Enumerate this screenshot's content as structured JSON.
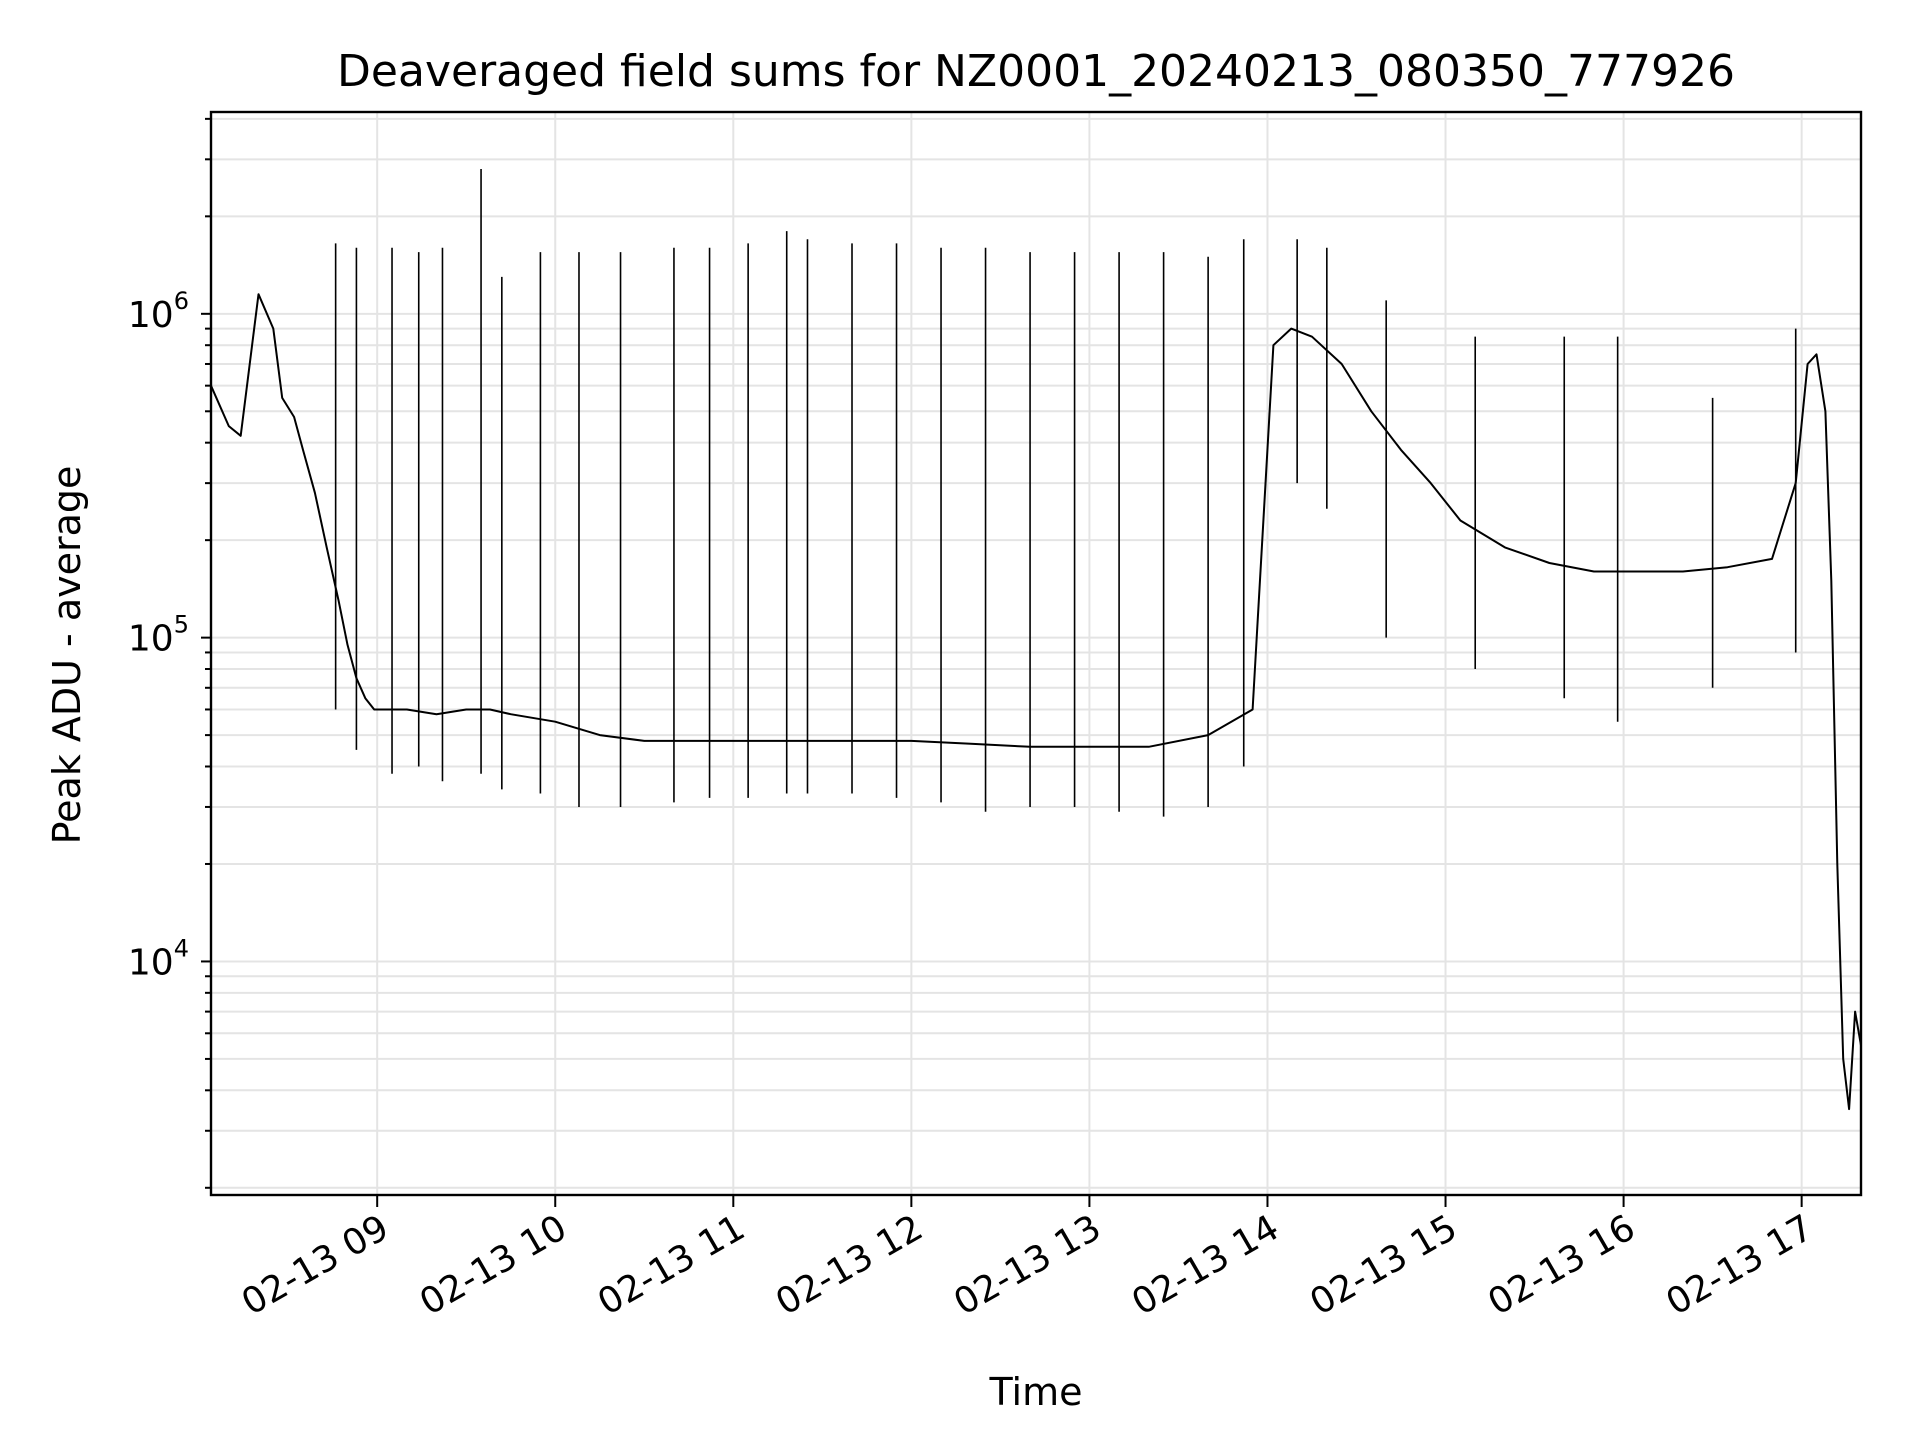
{
  "chart_data": {
    "type": "line",
    "title": "Deaveraged field sums for NZ0001_20240213_080350_777926",
    "xlabel": "Time",
    "ylabel": "Peak ADU - average",
    "x_scale": "time",
    "y_scale": "log",
    "xlim": [
      "2024-02-13 08:04",
      "2024-02-13 17:20"
    ],
    "ylim": [
      1900,
      4200000
    ],
    "grid": true,
    "x_ticks": [
      {
        "t": "2024-02-13 09:00",
        "label": "02-13 09"
      },
      {
        "t": "2024-02-13 10:00",
        "label": "02-13 10"
      },
      {
        "t": "2024-02-13 11:00",
        "label": "02-13 11"
      },
      {
        "t": "2024-02-13 12:00",
        "label": "02-13 12"
      },
      {
        "t": "2024-02-13 13:00",
        "label": "02-13 13"
      },
      {
        "t": "2024-02-13 14:00",
        "label": "02-13 14"
      },
      {
        "t": "2024-02-13 15:00",
        "label": "02-13 15"
      },
      {
        "t": "2024-02-13 16:00",
        "label": "02-13 16"
      },
      {
        "t": "2024-02-13 17:00",
        "label": "02-13 17"
      }
    ],
    "y_ticks": [
      {
        "value": 10000,
        "base": "10",
        "exp": "4"
      },
      {
        "value": 100000,
        "base": "10",
        "exp": "5"
      },
      {
        "value": 1000000,
        "base": "10",
        "exp": "6"
      }
    ],
    "series": [
      {
        "color": "#000000",
        "x": [
          "2024-02-13 08:04",
          "2024-02-13 08:10",
          "2024-02-13 08:14",
          "2024-02-13 08:20",
          "2024-02-13 08:25",
          "2024-02-13 08:28",
          "2024-02-13 08:32",
          "2024-02-13 08:35",
          "2024-02-13 08:39",
          "2024-02-13 08:43",
          "2024-02-13 08:47",
          "2024-02-13 08:50",
          "2024-02-13 08:53",
          "2024-02-13 08:56",
          "2024-02-13 08:59",
          "2024-02-13 09:03",
          "2024-02-13 09:10",
          "2024-02-13 09:20",
          "2024-02-13 09:30",
          "2024-02-13 09:38",
          "2024-02-13 09:45",
          "2024-02-13 10:00",
          "2024-02-13 10:15",
          "2024-02-13 10:30",
          "2024-02-13 10:45",
          "2024-02-13 11:00",
          "2024-02-13 11:20",
          "2024-02-13 11:40",
          "2024-02-13 12:00",
          "2024-02-13 12:20",
          "2024-02-13 12:40",
          "2024-02-13 13:00",
          "2024-02-13 13:20",
          "2024-02-13 13:40",
          "2024-02-13 13:55",
          "2024-02-13 14:02",
          "2024-02-13 14:08",
          "2024-02-13 14:15",
          "2024-02-13 14:25",
          "2024-02-13 14:35",
          "2024-02-13 14:45",
          "2024-02-13 14:55",
          "2024-02-13 15:05",
          "2024-02-13 15:20",
          "2024-02-13 15:35",
          "2024-02-13 15:50",
          "2024-02-13 16:05",
          "2024-02-13 16:20",
          "2024-02-13 16:35",
          "2024-02-13 16:50",
          "2024-02-13 16:58",
          "2024-02-13 17:02",
          "2024-02-13 17:05",
          "2024-02-13 17:08",
          "2024-02-13 17:10",
          "2024-02-13 17:12",
          "2024-02-13 17:14",
          "2024-02-13 17:16",
          "2024-02-13 17:18",
          "2024-02-13 17:20"
        ],
        "y": [
          600000,
          450000,
          420000,
          1150000,
          900000,
          550000,
          480000,
          380000,
          280000,
          190000,
          130000,
          95000,
          75000,
          65000,
          60000,
          60000,
          60000,
          58000,
          60000,
          60000,
          58000,
          55000,
          50000,
          48000,
          48000,
          48000,
          48000,
          48000,
          48000,
          47000,
          46000,
          46000,
          46000,
          50000,
          60000,
          800000,
          900000,
          850000,
          700000,
          500000,
          380000,
          300000,
          230000,
          190000,
          170000,
          160000,
          160000,
          160000,
          165000,
          175000,
          300000,
          700000,
          750000,
          500000,
          150000,
          20000,
          5000,
          3500,
          7000,
          5500
        ]
      }
    ],
    "spikes": {
      "x": [
        "2024-02-13 08:46",
        "2024-02-13 08:53",
        "2024-02-13 09:05",
        "2024-02-13 09:14",
        "2024-02-13 09:22",
        "2024-02-13 09:35",
        "2024-02-13 09:42",
        "2024-02-13 09:55",
        "2024-02-13 10:08",
        "2024-02-13 10:22",
        "2024-02-13 10:40",
        "2024-02-13 10:52",
        "2024-02-13 11:05",
        "2024-02-13 11:18",
        "2024-02-13 11:25",
        "2024-02-13 11:40",
        "2024-02-13 11:55",
        "2024-02-13 12:10",
        "2024-02-13 12:25",
        "2024-02-13 12:40",
        "2024-02-13 12:55",
        "2024-02-13 13:10",
        "2024-02-13 13:25",
        "2024-02-13 13:40",
        "2024-02-13 13:52",
        "2024-02-13 14:10",
        "2024-02-13 14:20",
        "2024-02-13 14:40",
        "2024-02-13 15:10",
        "2024-02-13 15:40",
        "2024-02-13 15:58",
        "2024-02-13 16:30",
        "2024-02-13 16:58"
      ],
      "high": [
        1650000,
        1600000,
        1600000,
        1550000,
        1600000,
        2800000,
        1300000,
        1550000,
        1550000,
        1550000,
        1600000,
        1600000,
        1650000,
        1800000,
        1700000,
        1650000,
        1650000,
        1600000,
        1600000,
        1550000,
        1550000,
        1550000,
        1550000,
        1500000,
        1700000,
        1700000,
        1600000,
        1100000,
        850000,
        850000,
        850000,
        550000,
        900000
      ],
      "low": [
        60000,
        45000,
        38000,
        40000,
        36000,
        38000,
        34000,
        33000,
        30000,
        30000,
        31000,
        32000,
        32000,
        33000,
        33000,
        33000,
        32000,
        31000,
        29000,
        30000,
        30000,
        29000,
        28000,
        30000,
        40000,
        300000,
        250000,
        100000,
        80000,
        65000,
        55000,
        70000,
        90000
      ]
    }
  }
}
